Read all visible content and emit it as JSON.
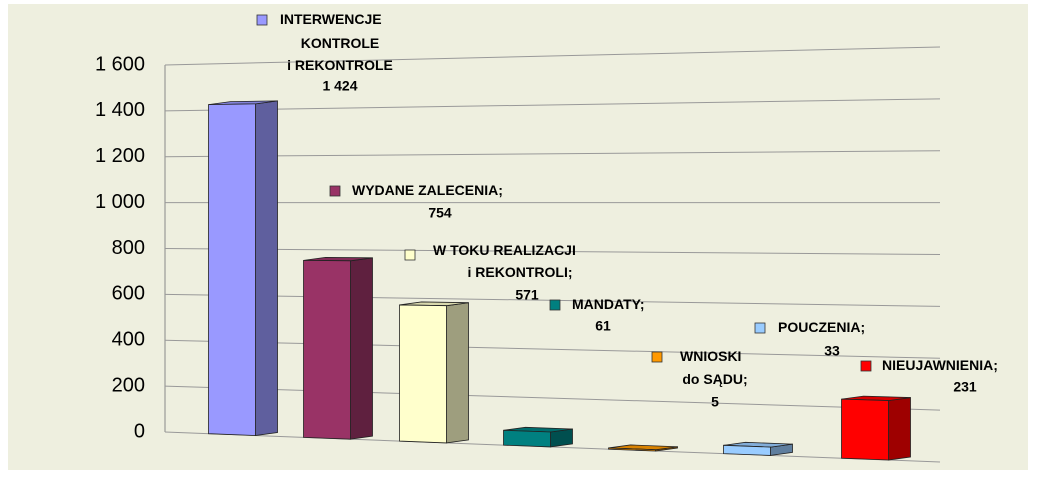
{
  "chart_data": {
    "type": "bar3d",
    "categories": [
      "INTERWENCJE\nKONTROLE\ni REKONTROLE",
      "WYDANE ZALECENIA;",
      "W TOKU REALIZACJI\ni REKONTROLI;",
      "MANDATY;",
      "WNIOSKI\ndo SĄDU;",
      "POUCZENIA;",
      "NIEUJAWNIENIA;"
    ],
    "values": [
      1424,
      754,
      571,
      61,
      5,
      33,
      231
    ],
    "value_labels": [
      "1 424",
      "754",
      "571",
      "61",
      "5",
      "33",
      "231"
    ],
    "colors": [
      "#9999ff",
      "#993366",
      "#ffffcc",
      "#008080",
      "#ff9900",
      "#99ccff",
      "#ff0000"
    ],
    "ylim": [
      0,
      1600
    ],
    "yticks": [
      0,
      200,
      400,
      600,
      800,
      {
        "value": 1000,
        "label": "1 000"
      },
      {
        "value": 1200,
        "label": "1 200"
      },
      {
        "value": 1400,
        "label": "1 400"
      },
      {
        "value": 1600,
        "label": "1 600"
      }
    ],
    "grid": true
  }
}
